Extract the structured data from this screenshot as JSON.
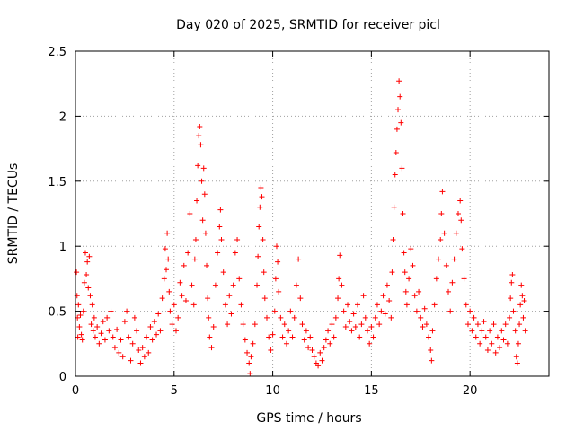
{
  "chart_data": {
    "type": "scatter",
    "title": "Day 020 of 2025, SRMTID for receiver picl",
    "xlabel": "GPS time / hours",
    "ylabel": "SRMTID / TECUs",
    "xlim": [
      0,
      24
    ],
    "ylim": [
      0,
      2.5
    ],
    "xticks": [
      0,
      5,
      10,
      15,
      20
    ],
    "yticks": [
      0,
      0.5,
      1,
      1.5,
      2,
      2.5
    ],
    "x_tick_labels": [
      "0",
      "5",
      "10",
      "15",
      "20"
    ],
    "y_tick_labels": [
      "0",
      "0.5",
      "1",
      "1.5",
      "2",
      "2.5"
    ],
    "grid": true,
    "marker": "+",
    "color": "#ff0000",
    "series": [
      {
        "name": "SRMTID",
        "points": [
          [
            0.05,
            0.8
          ],
          [
            0.08,
            0.62
          ],
          [
            0.1,
            0.45
          ],
          [
            0.12,
            0.3
          ],
          [
            0.15,
            0.55
          ],
          [
            0.2,
            0.38
          ],
          [
            0.25,
            0.47
          ],
          [
            0.3,
            0.32
          ],
          [
            0.35,
            0.28
          ],
          [
            0.4,
            0.5
          ],
          [
            0.45,
            0.72
          ],
          [
            0.5,
            0.95
          ],
          [
            0.55,
            0.78
          ],
          [
            0.6,
            0.88
          ],
          [
            0.65,
            0.68
          ],
          [
            0.7,
            0.92
          ],
          [
            0.75,
            0.62
          ],
          [
            0.8,
            0.4
          ],
          [
            0.85,
            0.55
          ],
          [
            0.9,
            0.35
          ],
          [
            0.95,
            0.45
          ],
          [
            1.0,
            0.3
          ],
          [
            1.1,
            0.38
          ],
          [
            1.2,
            0.25
          ],
          [
            1.3,
            0.33
          ],
          [
            1.4,
            0.42
          ],
          [
            1.5,
            0.28
          ],
          [
            1.6,
            0.45
          ],
          [
            1.7,
            0.35
          ],
          [
            1.8,
            0.5
          ],
          [
            1.9,
            0.3
          ],
          [
            2.0,
            0.22
          ],
          [
            2.1,
            0.36
          ],
          [
            2.2,
            0.18
          ],
          [
            2.3,
            0.28
          ],
          [
            2.4,
            0.15
          ],
          [
            2.5,
            0.42
          ],
          [
            2.6,
            0.5
          ],
          [
            2.7,
            0.3
          ],
          [
            2.8,
            0.12
          ],
          [
            2.9,
            0.25
          ],
          [
            3.0,
            0.45
          ],
          [
            3.1,
            0.35
          ],
          [
            3.2,
            0.2
          ],
          [
            3.3,
            0.1
          ],
          [
            3.4,
            0.22
          ],
          [
            3.5,
            0.15
          ],
          [
            3.6,
            0.3
          ],
          [
            3.7,
            0.18
          ],
          [
            3.8,
            0.38
          ],
          [
            3.9,
            0.28
          ],
          [
            4.0,
            0.42
          ],
          [
            4.1,
            0.32
          ],
          [
            4.2,
            0.48
          ],
          [
            4.3,
            0.35
          ],
          [
            4.4,
            0.6
          ],
          [
            4.5,
            0.75
          ],
          [
            4.55,
            0.98
          ],
          [
            4.6,
            0.82
          ],
          [
            4.65,
            1.1
          ],
          [
            4.7,
            0.9
          ],
          [
            4.75,
            0.65
          ],
          [
            4.8,
            0.5
          ],
          [
            4.9,
            0.4
          ],
          [
            5.0,
            0.55
          ],
          [
            5.1,
            0.35
          ],
          [
            5.2,
            0.45
          ],
          [
            5.3,
            0.72
          ],
          [
            5.4,
            0.62
          ],
          [
            5.5,
            0.85
          ],
          [
            5.6,
            0.58
          ],
          [
            5.7,
            0.95
          ],
          [
            5.8,
            1.25
          ],
          [
            5.9,
            0.7
          ],
          [
            6.0,
            0.55
          ],
          [
            6.05,
            0.9
          ],
          [
            6.1,
            1.05
          ],
          [
            6.15,
            1.35
          ],
          [
            6.2,
            1.62
          ],
          [
            6.25,
            1.85
          ],
          [
            6.3,
            1.92
          ],
          [
            6.35,
            1.78
          ],
          [
            6.4,
            1.5
          ],
          [
            6.45,
            1.2
          ],
          [
            6.5,
            1.6
          ],
          [
            6.55,
            1.4
          ],
          [
            6.6,
            1.1
          ],
          [
            6.65,
            0.85
          ],
          [
            6.7,
            0.6
          ],
          [
            6.75,
            0.45
          ],
          [
            6.8,
            0.3
          ],
          [
            6.9,
            0.22
          ],
          [
            7.0,
            0.38
          ],
          [
            7.1,
            0.7
          ],
          [
            7.2,
            0.95
          ],
          [
            7.3,
            1.15
          ],
          [
            7.35,
            1.28
          ],
          [
            7.4,
            1.05
          ],
          [
            7.5,
            0.8
          ],
          [
            7.6,
            0.55
          ],
          [
            7.7,
            0.4
          ],
          [
            7.8,
            0.62
          ],
          [
            7.9,
            0.48
          ],
          [
            8.0,
            0.7
          ],
          [
            8.1,
            0.95
          ],
          [
            8.2,
            1.05
          ],
          [
            8.3,
            0.75
          ],
          [
            8.4,
            0.55
          ],
          [
            8.5,
            0.4
          ],
          [
            8.6,
            0.28
          ],
          [
            8.7,
            0.18
          ],
          [
            8.8,
            0.1
          ],
          [
            8.85,
            0.02
          ],
          [
            8.9,
            0.15
          ],
          [
            9.0,
            0.25
          ],
          [
            9.1,
            0.4
          ],
          [
            9.2,
            0.7
          ],
          [
            9.25,
            0.92
          ],
          [
            9.3,
            1.15
          ],
          [
            9.35,
            1.3
          ],
          [
            9.4,
            1.45
          ],
          [
            9.45,
            1.38
          ],
          [
            9.5,
            1.05
          ],
          [
            9.55,
            0.8
          ],
          [
            9.6,
            0.6
          ],
          [
            9.7,
            0.45
          ],
          [
            9.8,
            0.3
          ],
          [
            9.9,
            0.2
          ],
          [
            10.0,
            0.32
          ],
          [
            10.1,
            0.5
          ],
          [
            10.15,
            0.75
          ],
          [
            10.2,
            1.0
          ],
          [
            10.25,
            0.88
          ],
          [
            10.3,
            0.65
          ],
          [
            10.4,
            0.45
          ],
          [
            10.5,
            0.3
          ],
          [
            10.6,
            0.4
          ],
          [
            10.7,
            0.25
          ],
          [
            10.8,
            0.35
          ],
          [
            10.9,
            0.5
          ],
          [
            11.0,
            0.3
          ],
          [
            11.1,
            0.45
          ],
          [
            11.2,
            0.7
          ],
          [
            11.3,
            0.9
          ],
          [
            11.4,
            0.6
          ],
          [
            11.5,
            0.4
          ],
          [
            11.6,
            0.28
          ],
          [
            11.7,
            0.35
          ],
          [
            11.8,
            0.22
          ],
          [
            11.9,
            0.3
          ],
          [
            12.0,
            0.2
          ],
          [
            12.1,
            0.15
          ],
          [
            12.2,
            0.1
          ],
          [
            12.3,
            0.08
          ],
          [
            12.4,
            0.18
          ],
          [
            12.5,
            0.12
          ],
          [
            12.6,
            0.22
          ],
          [
            12.7,
            0.28
          ],
          [
            12.8,
            0.35
          ],
          [
            12.9,
            0.25
          ],
          [
            13.0,
            0.4
          ],
          [
            13.1,
            0.3
          ],
          [
            13.2,
            0.45
          ],
          [
            13.3,
            0.6
          ],
          [
            13.35,
            0.75
          ],
          [
            13.4,
            0.93
          ],
          [
            13.5,
            0.7
          ],
          [
            13.6,
            0.5
          ],
          [
            13.7,
            0.38
          ],
          [
            13.8,
            0.55
          ],
          [
            13.9,
            0.42
          ],
          [
            14.0,
            0.35
          ],
          [
            14.1,
            0.48
          ],
          [
            14.2,
            0.38
          ],
          [
            14.3,
            0.55
          ],
          [
            14.4,
            0.3
          ],
          [
            14.5,
            0.4
          ],
          [
            14.6,
            0.62
          ],
          [
            14.7,
            0.45
          ],
          [
            14.8,
            0.35
          ],
          [
            14.9,
            0.25
          ],
          [
            15.0,
            0.38
          ],
          [
            15.1,
            0.3
          ],
          [
            15.2,
            0.45
          ],
          [
            15.3,
            0.55
          ],
          [
            15.4,
            0.4
          ],
          [
            15.5,
            0.5
          ],
          [
            15.6,
            0.62
          ],
          [
            15.7,
            0.48
          ],
          [
            15.8,
            0.7
          ],
          [
            15.9,
            0.58
          ],
          [
            16.0,
            0.45
          ],
          [
            16.05,
            0.8
          ],
          [
            16.1,
            1.05
          ],
          [
            16.15,
            1.3
          ],
          [
            16.2,
            1.55
          ],
          [
            16.25,
            1.72
          ],
          [
            16.3,
            1.9
          ],
          [
            16.35,
            2.05
          ],
          [
            16.4,
            2.27
          ],
          [
            16.45,
            2.15
          ],
          [
            16.5,
            1.95
          ],
          [
            16.55,
            1.6
          ],
          [
            16.6,
            1.25
          ],
          [
            16.65,
            0.95
          ],
          [
            16.7,
            0.8
          ],
          [
            16.75,
            0.65
          ],
          [
            16.8,
            0.55
          ],
          [
            16.9,
            0.75
          ],
          [
            17.0,
            0.98
          ],
          [
            17.1,
            0.85
          ],
          [
            17.2,
            0.62
          ],
          [
            17.3,
            0.5
          ],
          [
            17.4,
            0.65
          ],
          [
            17.5,
            0.45
          ],
          [
            17.6,
            0.38
          ],
          [
            17.7,
            0.52
          ],
          [
            17.8,
            0.4
          ],
          [
            17.9,
            0.3
          ],
          [
            18.0,
            0.2
          ],
          [
            18.05,
            0.12
          ],
          [
            18.1,
            0.35
          ],
          [
            18.2,
            0.55
          ],
          [
            18.3,
            0.75
          ],
          [
            18.4,
            0.9
          ],
          [
            18.5,
            1.05
          ],
          [
            18.55,
            1.25
          ],
          [
            18.6,
            1.42
          ],
          [
            18.7,
            1.1
          ],
          [
            18.8,
            0.85
          ],
          [
            18.9,
            0.65
          ],
          [
            19.0,
            0.5
          ],
          [
            19.1,
            0.72
          ],
          [
            19.2,
            0.9
          ],
          [
            19.3,
            1.1
          ],
          [
            19.4,
            1.25
          ],
          [
            19.5,
            1.35
          ],
          [
            19.55,
            1.2
          ],
          [
            19.6,
            0.98
          ],
          [
            19.7,
            0.75
          ],
          [
            19.8,
            0.55
          ],
          [
            19.9,
            0.4
          ],
          [
            20.0,
            0.5
          ],
          [
            20.1,
            0.35
          ],
          [
            20.2,
            0.45
          ],
          [
            20.3,
            0.3
          ],
          [
            20.4,
            0.4
          ],
          [
            20.5,
            0.25
          ],
          [
            20.6,
            0.35
          ],
          [
            20.7,
            0.42
          ],
          [
            20.8,
            0.3
          ],
          [
            20.9,
            0.2
          ],
          [
            21.0,
            0.35
          ],
          [
            21.1,
            0.25
          ],
          [
            21.2,
            0.4
          ],
          [
            21.3,
            0.18
          ],
          [
            21.4,
            0.3
          ],
          [
            21.5,
            0.22
          ],
          [
            21.6,
            0.35
          ],
          [
            21.7,
            0.28
          ],
          [
            21.8,
            0.4
          ],
          [
            21.9,
            0.25
          ],
          [
            22.0,
            0.45
          ],
          [
            22.05,
            0.6
          ],
          [
            22.1,
            0.72
          ],
          [
            22.15,
            0.78
          ],
          [
            22.2,
            0.5
          ],
          [
            22.3,
            0.35
          ],
          [
            22.35,
            0.15
          ],
          [
            22.4,
            0.1
          ],
          [
            22.45,
            0.25
          ],
          [
            22.5,
            0.4
          ],
          [
            22.55,
            0.55
          ],
          [
            22.6,
            0.7
          ],
          [
            22.65,
            0.62
          ],
          [
            22.7,
            0.45
          ],
          [
            22.75,
            0.58
          ],
          [
            22.8,
            0.35
          ]
        ]
      }
    ]
  }
}
